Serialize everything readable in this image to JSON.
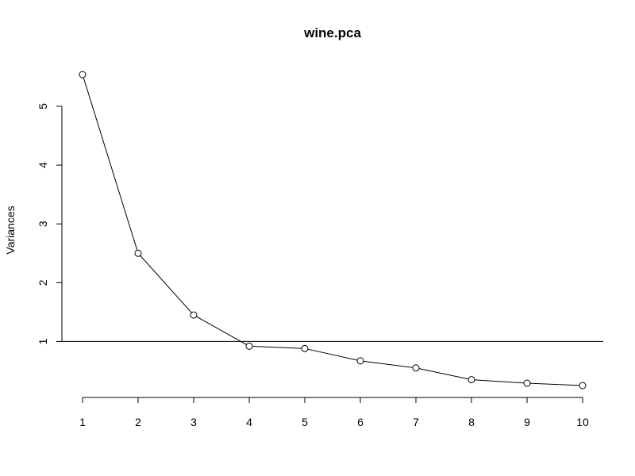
{
  "chart_data": {
    "type": "line",
    "title": "wine.pca",
    "xlabel": "",
    "ylabel": "Variances",
    "x": [
      1,
      2,
      3,
      4,
      5,
      6,
      7,
      8,
      9,
      10
    ],
    "values": [
      5.54,
      2.5,
      1.45,
      0.92,
      0.88,
      0.67,
      0.55,
      0.35,
      0.29,
      0.25
    ],
    "x_ticks": [
      "1",
      "2",
      "3",
      "4",
      "5",
      "6",
      "7",
      "8",
      "9",
      "10"
    ],
    "y_ticks": [
      "1",
      "2",
      "3",
      "4",
      "5"
    ],
    "ylim": [
      0.25,
      5.54
    ],
    "xlim": [
      1,
      10
    ],
    "reference_line_y": 1,
    "grid": false,
    "marker": "open-circle",
    "color": "#000000"
  }
}
